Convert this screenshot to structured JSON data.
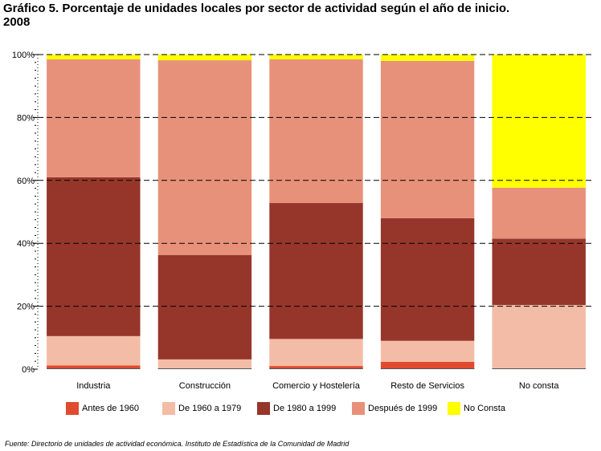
{
  "title_line1": "Gráfico 5. Porcentaje de unidades locales por sector de actividad según el año de inicio.",
  "title_line2": "2008",
  "source": "Fuente: Directorio de unidades de actividad económica. Instituto de Estadística de la Comunidad de Madrid",
  "chart_data": {
    "type": "bar",
    "stacked": true,
    "title": "Gráfico 5. Porcentaje de unidades locales por sector de actividad según el año de inicio. 2008",
    "categories": [
      "Industria",
      "Construcción",
      "Comercio y Hostelería",
      "Resto de Servicios",
      "No consta"
    ],
    "ylim": [
      0,
      100
    ],
    "yticks": [
      "0%",
      "20%",
      "40%",
      "60%",
      "80%",
      "100%"
    ],
    "grid": true,
    "legend_position": "bottom",
    "series": [
      {
        "name": "Antes de 1960",
        "color": "#e04a2f",
        "values": [
          1.2,
          0.3,
          1.0,
          2.3,
          0.2
        ]
      },
      {
        "name": "De 1960 a 1979",
        "color": "#f3bca6",
        "values": [
          9.3,
          2.8,
          8.6,
          6.7,
          20.2
        ]
      },
      {
        "name": "De 1980 a 1999",
        "color": "#96362b",
        "values": [
          50.5,
          33.2,
          43.2,
          39.0,
          21.1
        ]
      },
      {
        "name": "Después de 1999",
        "color": "#e8917a",
        "values": [
          37.5,
          61.9,
          45.7,
          50.0,
          16.2
        ]
      },
      {
        "name": "No Consta",
        "color": "#ffff00",
        "values": [
          1.5,
          1.8,
          1.5,
          2.0,
          42.3
        ]
      }
    ]
  }
}
